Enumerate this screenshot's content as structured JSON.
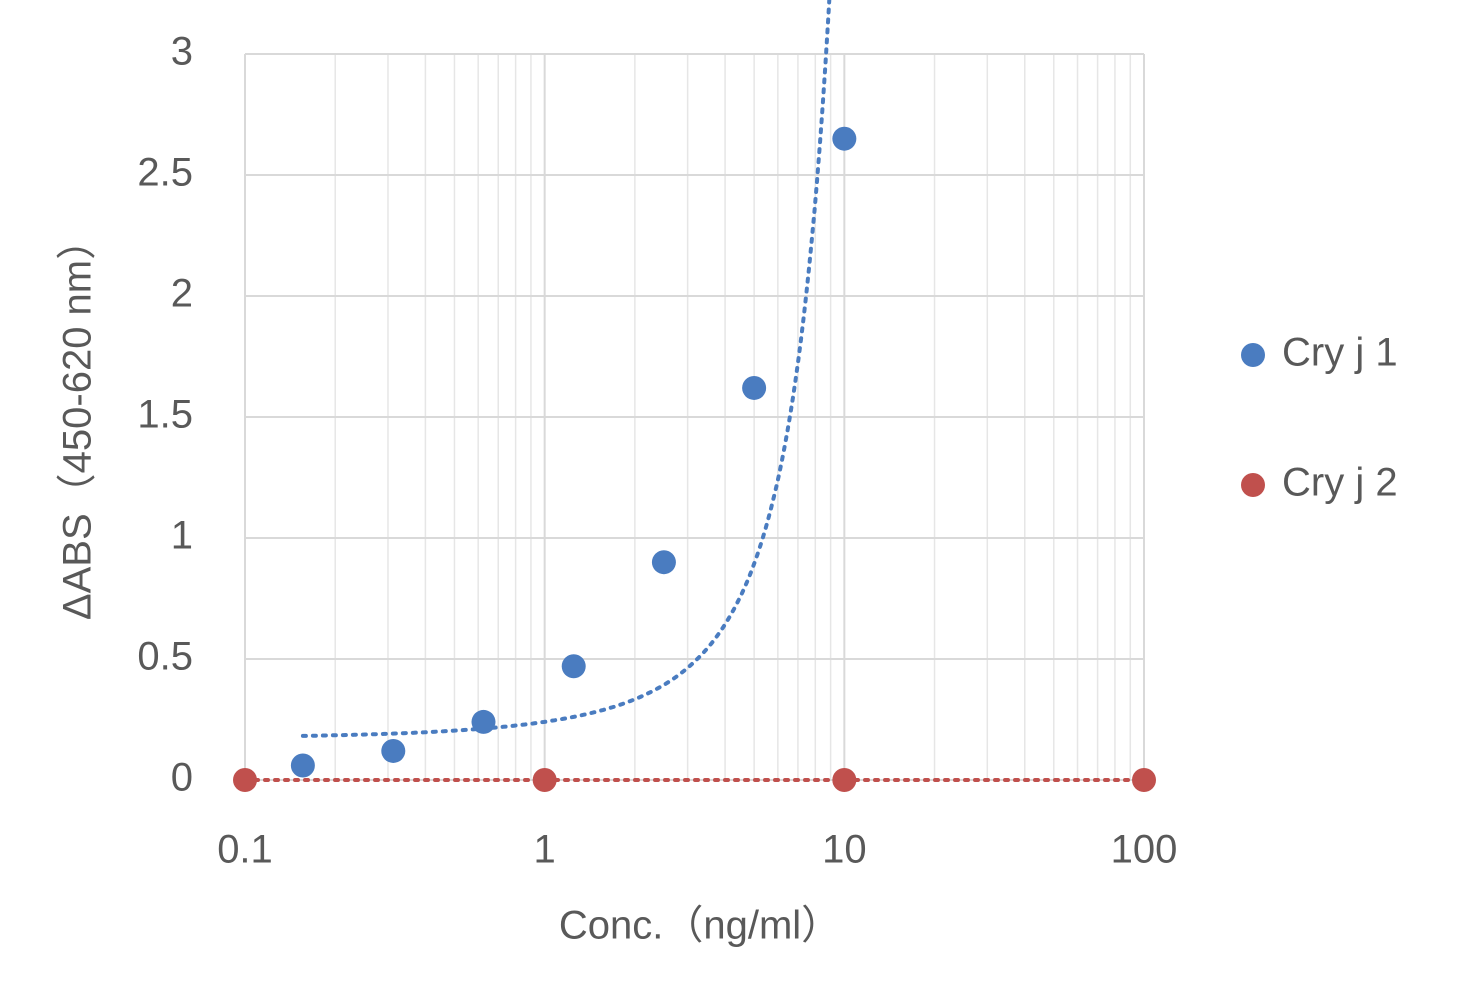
{
  "chart_data": {
    "type": "scatter",
    "x_label": "Conc.（ng/ml）",
    "y_label": "ΔABS（450-620 nm）",
    "x_log": true,
    "xlim": [
      0.1,
      100
    ],
    "xticks": [
      0.1,
      1,
      10,
      100
    ],
    "ylim": [
      0,
      3
    ],
    "yticks": [
      0,
      0.5,
      1,
      1.5,
      2,
      2.5,
      3
    ],
    "grid": true,
    "minor_grid": true,
    "trendline": true,
    "legend": "right",
    "series": [
      {
        "name": "Cry j 1",
        "color": "#4a7cc0",
        "x": [
          0.156,
          0.3125,
          0.625,
          1.25,
          2.5,
          5,
          10
        ],
        "values": [
          0.06,
          0.12,
          0.24,
          0.47,
          0.9,
          1.62,
          2.65
        ]
      },
      {
        "name": "Cry j 2",
        "color": "#c0504d",
        "x": [
          0.1,
          1,
          10,
          100
        ],
        "values": [
          0,
          0,
          0,
          0
        ]
      }
    ]
  }
}
